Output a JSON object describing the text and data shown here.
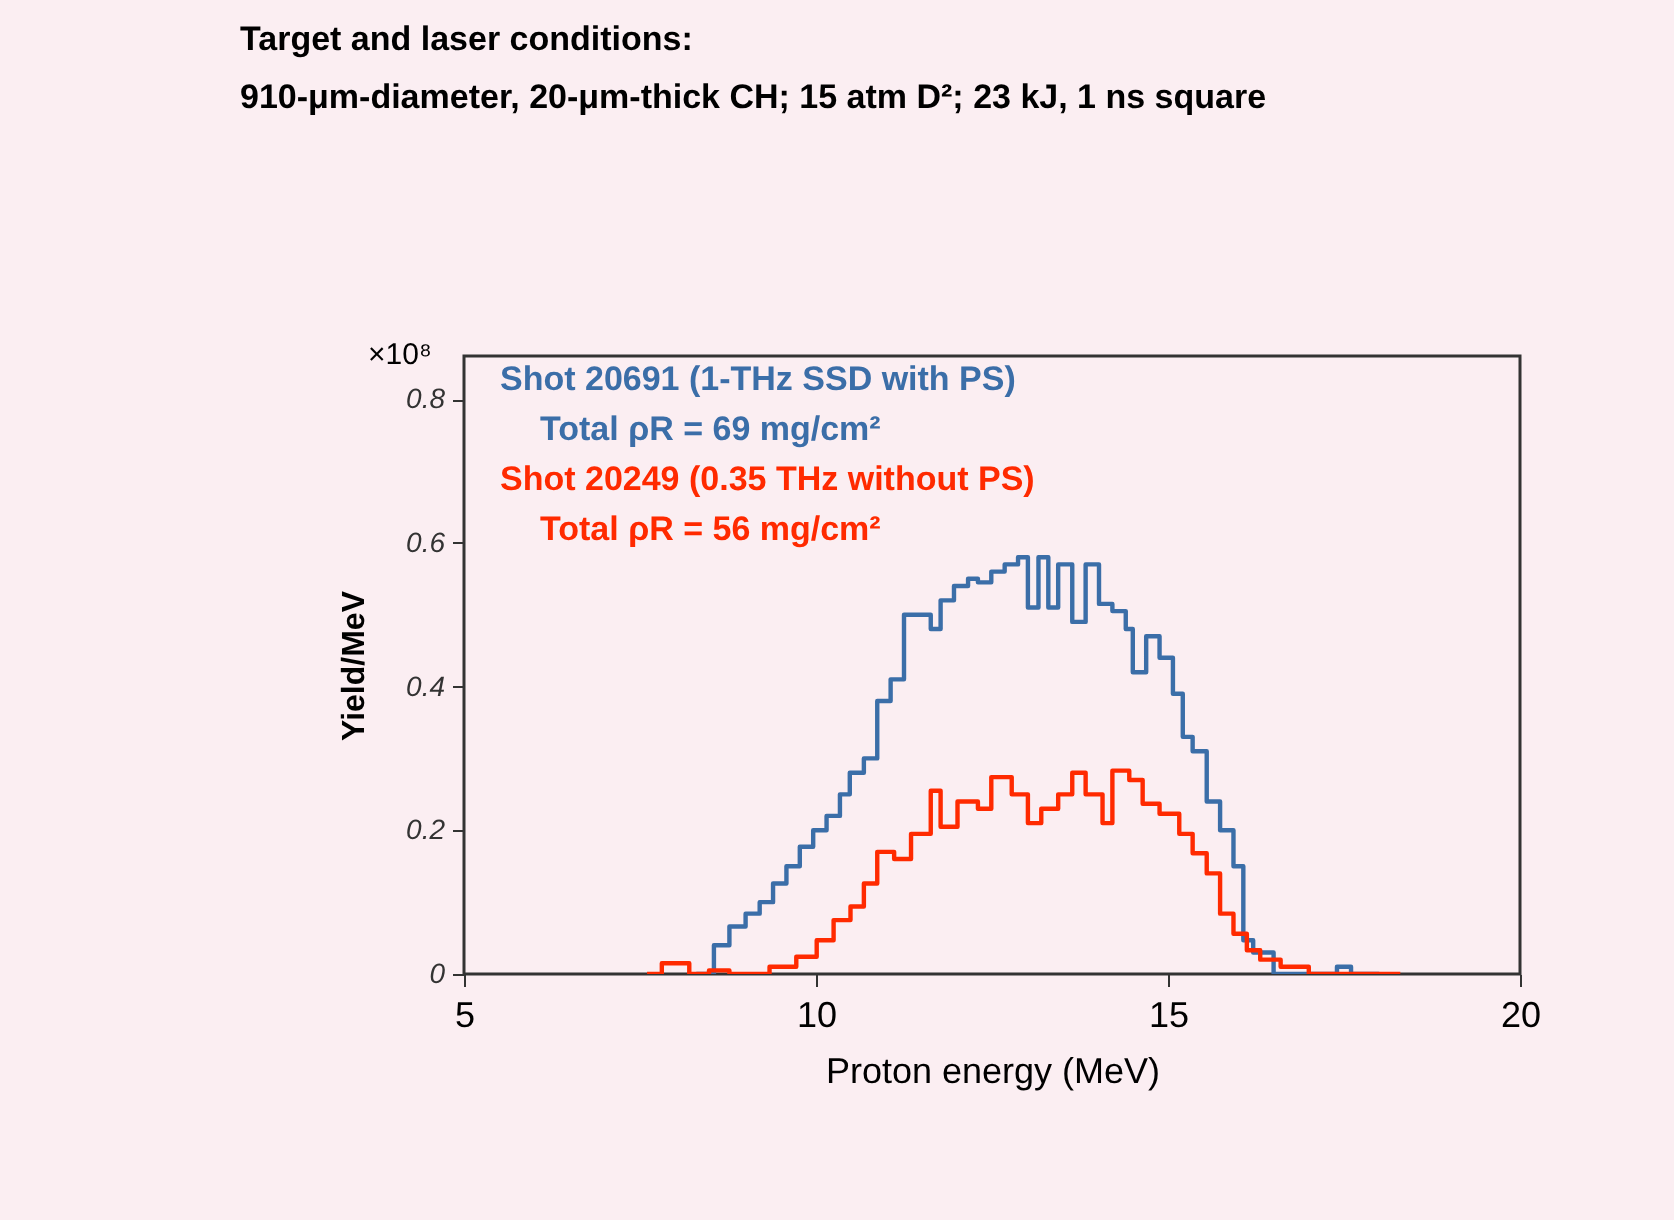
{
  "chart_data": {
    "type": "step",
    "title": "Target and laser conditions:",
    "subtitle": "910-μm-diameter, 20-μm-thick CH; 15 atm D²; 23 kJ, 1 ns square",
    "xlabel": "Proton energy (MeV)",
    "ylabel": "Yield/MeV",
    "annotations": [
      "×10⁸",
      "Total ρR = 69 mg/cm²",
      "Total ρR = 56 mg/cm²"
    ],
    "xlim": [
      5,
      20
    ],
    "xticks": [
      5,
      10,
      15,
      20
    ],
    "ylim": [
      0,
      0.86
    ],
    "yticks": [
      0,
      0.2,
      0.4,
      0.6,
      0.8
    ],
    "legend": "top left",
    "grid": false,
    "series": [
      {
        "name": "Shot 20691 (1-THz SSD with PS)",
        "color": "#3b6ea8",
        "x": [
          8.3,
          8.55,
          8.77,
          9.0,
          9.2,
          9.39,
          9.58,
          9.77,
          9.96,
          10.15,
          10.34,
          10.48,
          10.68,
          10.87,
          11.06,
          11.25,
          11.49,
          11.63,
          11.77,
          11.96,
          12.16,
          12.3,
          12.49,
          12.68,
          12.87,
          13.01,
          13.16,
          13.3,
          13.44,
          13.64,
          13.83,
          14.02,
          14.21,
          14.4,
          14.5,
          14.69,
          14.88,
          15.07,
          15.21,
          15.35,
          15.55,
          15.74,
          15.93,
          16.07,
          16.21,
          16.5,
          17.4,
          17.6,
          18.0
        ],
        "values": [
          0,
          0.04,
          0.066,
          0.084,
          0.1,
          0.126,
          0.15,
          0.177,
          0.2,
          0.22,
          0.25,
          0.28,
          0.3,
          0.38,
          0.41,
          0.5,
          0.5,
          0.48,
          0.52,
          0.54,
          0.55,
          0.545,
          0.56,
          0.57,
          0.58,
          0.51,
          0.58,
          0.51,
          0.57,
          0.49,
          0.57,
          0.515,
          0.505,
          0.48,
          0.42,
          0.47,
          0.44,
          0.39,
          0.33,
          0.31,
          0.24,
          0.2,
          0.15,
          0.047,
          0.03,
          0,
          0.01,
          0,
          0
        ]
      },
      {
        "name": "Shot 20249 (0.35 THz without PS)",
        "color": "#ff2a00",
        "x": [
          7.6,
          7.81,
          8.2,
          8.48,
          8.77,
          9.34,
          9.72,
          10.01,
          10.25,
          10.49,
          10.68,
          10.87,
          11.11,
          11.35,
          11.63,
          11.77,
          12.01,
          12.3,
          12.49,
          12.78,
          13.01,
          13.2,
          13.44,
          13.64,
          13.83,
          14.07,
          14.21,
          14.45,
          14.64,
          14.88,
          15.16,
          15.35,
          15.55,
          15.74,
          15.93,
          16.12,
          16.31,
          16.6,
          17.0,
          18.3
        ],
        "values": [
          0,
          0.015,
          0,
          0.005,
          0,
          0.01,
          0.024,
          0.047,
          0.075,
          0.094,
          0.126,
          0.17,
          0.16,
          0.195,
          0.255,
          0.205,
          0.24,
          0.23,
          0.274,
          0.25,
          0.21,
          0.23,
          0.25,
          0.28,
          0.25,
          0.21,
          0.283,
          0.27,
          0.237,
          0.223,
          0.195,
          0.168,
          0.14,
          0.084,
          0.056,
          0.033,
          0.02,
          0.01,
          0,
          0
        ]
      }
    ]
  }
}
